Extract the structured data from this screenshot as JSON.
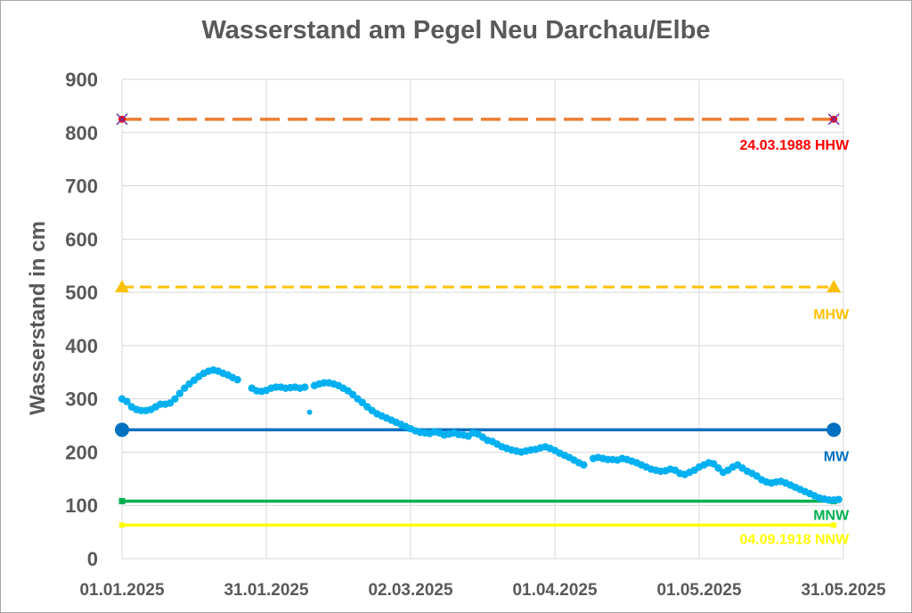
{
  "chart_data": {
    "type": "scatter",
    "title": "Wasserstand am Pegel Neu Darchau/Elbe",
    "xlabel": "",
    "ylabel": "Wasserstand in cm",
    "ylim": [
      0,
      900
    ],
    "yticks": [
      "0",
      "100",
      "200",
      "300",
      "400",
      "500",
      "600",
      "700",
      "800",
      "900"
    ],
    "xlim": [
      "2025-01-01",
      "2025-05-31"
    ],
    "xticks": [
      "01.01.2025",
      "31.01.2025",
      "02.03.2025",
      "01.04.2025",
      "01.05.2025",
      "31.05.2025"
    ],
    "grid": true,
    "reference_lines": [
      {
        "label": "24.03.1988 HHW",
        "value": 825,
        "color": "#ed7d31",
        "label_color": "#ff0000",
        "style": "long-dash",
        "marker": "x"
      },
      {
        "label": "MHW",
        "value": 510,
        "color": "#ffc000",
        "label_color": "#ffc000",
        "style": "dash",
        "marker": "triangle"
      },
      {
        "label": "MW",
        "value": 242,
        "color": "#0070c0",
        "label_color": "#0070c0",
        "style": "solid",
        "marker": "circle"
      },
      {
        "label": "MNW",
        "value": 108,
        "color": "#00b050",
        "label_color": "#00b050",
        "style": "solid",
        "marker": "square"
      },
      {
        "label": "04.09.1918  NNW",
        "value": 63,
        "color": "#ffff00",
        "label_color": "#ffff00",
        "style": "solid",
        "marker": "square"
      }
    ],
    "series": [
      {
        "color": "#00b0f0",
        "points": [
          [
            "2025-01-01",
            300
          ],
          [
            "2025-01-02",
            295
          ],
          [
            "2025-01-03",
            285
          ],
          [
            "2025-01-04",
            280
          ],
          [
            "2025-01-05",
            278
          ],
          [
            "2025-01-06",
            278
          ],
          [
            "2025-01-07",
            280
          ],
          [
            "2025-01-08",
            285
          ],
          [
            "2025-01-09",
            290
          ],
          [
            "2025-01-10",
            290
          ],
          [
            "2025-01-11",
            292
          ],
          [
            "2025-01-12",
            300
          ],
          [
            "2025-01-13",
            310
          ],
          [
            "2025-01-14",
            320
          ],
          [
            "2025-01-15",
            328
          ],
          [
            "2025-01-16",
            335
          ],
          [
            "2025-01-17",
            342
          ],
          [
            "2025-01-18",
            348
          ],
          [
            "2025-01-19",
            352
          ],
          [
            "2025-01-20",
            354
          ],
          [
            "2025-01-21",
            352
          ],
          [
            "2025-01-22",
            348
          ],
          [
            "2025-01-23",
            345
          ],
          [
            "2025-01-24",
            340
          ],
          [
            "2025-01-25",
            336
          ],
          [
            "2025-01-28",
            320
          ],
          [
            "2025-01-29",
            315
          ],
          [
            "2025-01-30",
            314
          ],
          [
            "2025-01-31",
            316
          ],
          [
            "2025-02-01",
            320
          ],
          [
            "2025-02-02",
            322
          ],
          [
            "2025-02-03",
            322
          ],
          [
            "2025-02-04",
            320
          ],
          [
            "2025-02-05",
            321
          ],
          [
            "2025-02-06",
            322
          ],
          [
            "2025-02-07",
            320
          ],
          [
            "2025-02-08",
            322
          ],
          [
            "2025-02-09",
            275
          ],
          [
            "2025-02-10",
            325
          ],
          [
            "2025-02-11",
            328
          ],
          [
            "2025-02-12",
            330
          ],
          [
            "2025-02-13",
            330
          ],
          [
            "2025-02-14",
            328
          ],
          [
            "2025-02-15",
            325
          ],
          [
            "2025-02-16",
            320
          ],
          [
            "2025-02-17",
            315
          ],
          [
            "2025-02-18",
            308
          ],
          [
            "2025-02-19",
            300
          ],
          [
            "2025-02-20",
            293
          ],
          [
            "2025-02-21",
            285
          ],
          [
            "2025-02-22",
            278
          ],
          [
            "2025-02-23",
            272
          ],
          [
            "2025-02-24",
            268
          ],
          [
            "2025-02-25",
            264
          ],
          [
            "2025-02-26",
            260
          ],
          [
            "2025-02-27",
            256
          ],
          [
            "2025-02-28",
            252
          ],
          [
            "2025-03-01",
            248
          ],
          [
            "2025-03-02",
            244
          ],
          [
            "2025-03-03",
            240
          ],
          [
            "2025-03-04",
            237
          ],
          [
            "2025-03-05",
            236
          ],
          [
            "2025-03-06",
            235
          ],
          [
            "2025-03-07",
            238
          ],
          [
            "2025-03-08",
            236
          ],
          [
            "2025-03-09",
            232
          ],
          [
            "2025-03-10",
            234
          ],
          [
            "2025-03-11",
            236
          ],
          [
            "2025-03-12",
            233
          ],
          [
            "2025-03-13",
            232
          ],
          [
            "2025-03-14",
            230
          ],
          [
            "2025-03-15",
            236
          ],
          [
            "2025-03-16",
            234
          ],
          [
            "2025-03-17",
            228
          ],
          [
            "2025-03-18",
            222
          ],
          [
            "2025-03-19",
            220
          ],
          [
            "2025-03-20",
            215
          ],
          [
            "2025-03-21",
            210
          ],
          [
            "2025-03-22",
            207
          ],
          [
            "2025-03-23",
            204
          ],
          [
            "2025-03-24",
            202
          ],
          [
            "2025-03-25",
            200
          ],
          [
            "2025-03-26",
            202
          ],
          [
            "2025-03-27",
            204
          ],
          [
            "2025-03-28",
            205
          ],
          [
            "2025-03-29",
            208
          ],
          [
            "2025-03-30",
            210
          ],
          [
            "2025-03-31",
            207
          ],
          [
            "2025-04-01",
            203
          ],
          [
            "2025-04-02",
            198
          ],
          [
            "2025-04-03",
            194
          ],
          [
            "2025-04-04",
            190
          ],
          [
            "2025-04-05",
            185
          ],
          [
            "2025-04-06",
            180
          ],
          [
            "2025-04-07",
            176
          ],
          [
            "2025-04-09",
            188
          ],
          [
            "2025-04-10",
            190
          ],
          [
            "2025-04-11",
            188
          ],
          [
            "2025-04-12",
            186
          ],
          [
            "2025-04-13",
            186
          ],
          [
            "2025-04-14",
            185
          ],
          [
            "2025-04-15",
            188
          ],
          [
            "2025-04-16",
            186
          ],
          [
            "2025-04-17",
            183
          ],
          [
            "2025-04-18",
            180
          ],
          [
            "2025-04-19",
            176
          ],
          [
            "2025-04-20",
            172
          ],
          [
            "2025-04-21",
            168
          ],
          [
            "2025-04-22",
            166
          ],
          [
            "2025-04-23",
            164
          ],
          [
            "2025-04-24",
            165
          ],
          [
            "2025-04-25",
            168
          ],
          [
            "2025-04-26",
            166
          ],
          [
            "2025-04-27",
            160
          ],
          [
            "2025-04-28",
            158
          ],
          [
            "2025-04-29",
            162
          ],
          [
            "2025-04-30",
            166
          ],
          [
            "2025-05-01",
            172
          ],
          [
            "2025-05-02",
            176
          ],
          [
            "2025-05-03",
            180
          ],
          [
            "2025-05-04",
            178
          ],
          [
            "2025-05-05",
            170
          ],
          [
            "2025-05-06",
            162
          ],
          [
            "2025-05-07",
            166
          ],
          [
            "2025-05-08",
            172
          ],
          [
            "2025-05-09",
            176
          ],
          [
            "2025-05-10",
            170
          ],
          [
            "2025-05-11",
            164
          ],
          [
            "2025-05-12",
            160
          ],
          [
            "2025-05-13",
            155
          ],
          [
            "2025-05-14",
            148
          ],
          [
            "2025-05-15",
            144
          ],
          [
            "2025-05-16",
            142
          ],
          [
            "2025-05-17",
            144
          ],
          [
            "2025-05-18",
            145
          ],
          [
            "2025-05-19",
            142
          ],
          [
            "2025-05-20",
            138
          ],
          [
            "2025-05-21",
            134
          ],
          [
            "2025-05-22",
            130
          ],
          [
            "2025-05-23",
            126
          ],
          [
            "2025-05-24",
            122
          ],
          [
            "2025-05-25",
            118
          ],
          [
            "2025-05-26",
            114
          ],
          [
            "2025-05-27",
            112
          ],
          [
            "2025-05-28",
            110
          ],
          [
            "2025-05-29",
            110
          ],
          [
            "2025-05-30",
            111
          ]
        ]
      }
    ]
  }
}
